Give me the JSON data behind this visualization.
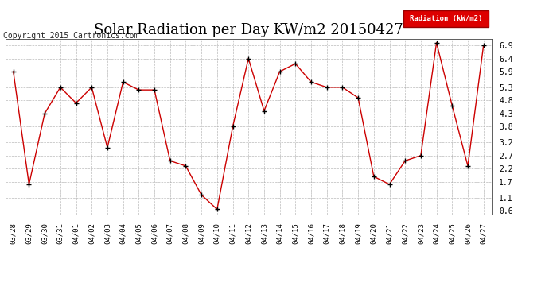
{
  "title": "Solar Radiation per Day KW/m2 20150427",
  "copyright": "Copyright 2015 Cartronics.com",
  "legend_label": "Radiation (kW/m2)",
  "dates": [
    "03/28",
    "03/29",
    "03/30",
    "03/31",
    "04/01",
    "04/02",
    "04/03",
    "04/04",
    "04/05",
    "04/06",
    "04/07",
    "04/08",
    "04/09",
    "04/10",
    "04/11",
    "04/12",
    "04/13",
    "04/14",
    "04/15",
    "04/16",
    "04/17",
    "04/18",
    "04/19",
    "04/20",
    "04/21",
    "04/22",
    "04/23",
    "04/24",
    "04/25",
    "04/26",
    "04/27"
  ],
  "values": [
    5.9,
    1.6,
    4.3,
    5.3,
    4.7,
    5.3,
    3.0,
    5.5,
    5.2,
    5.2,
    2.5,
    2.3,
    1.2,
    0.65,
    3.8,
    6.4,
    4.4,
    5.9,
    6.2,
    5.5,
    5.3,
    5.3,
    4.9,
    1.9,
    1.6,
    2.5,
    2.7,
    7.0,
    4.6,
    2.3,
    6.9
  ],
  "ylim": [
    0.45,
    7.15
  ],
  "yticks": [
    0.6,
    1.1,
    1.7,
    2.2,
    2.7,
    3.2,
    3.8,
    4.3,
    4.8,
    5.3,
    5.9,
    6.4,
    6.9
  ],
  "line_color": "#cc0000",
  "marker_color": "#000000",
  "bg_color": "#ffffff",
  "grid_color": "#aaaaaa",
  "legend_bg": "#dd0000",
  "legend_text_color": "#ffffff",
  "title_fontsize": 13,
  "tick_fontsize": 6.5,
  "copyright_fontsize": 7,
  "figsize": [
    6.9,
    3.75
  ],
  "dpi": 100
}
